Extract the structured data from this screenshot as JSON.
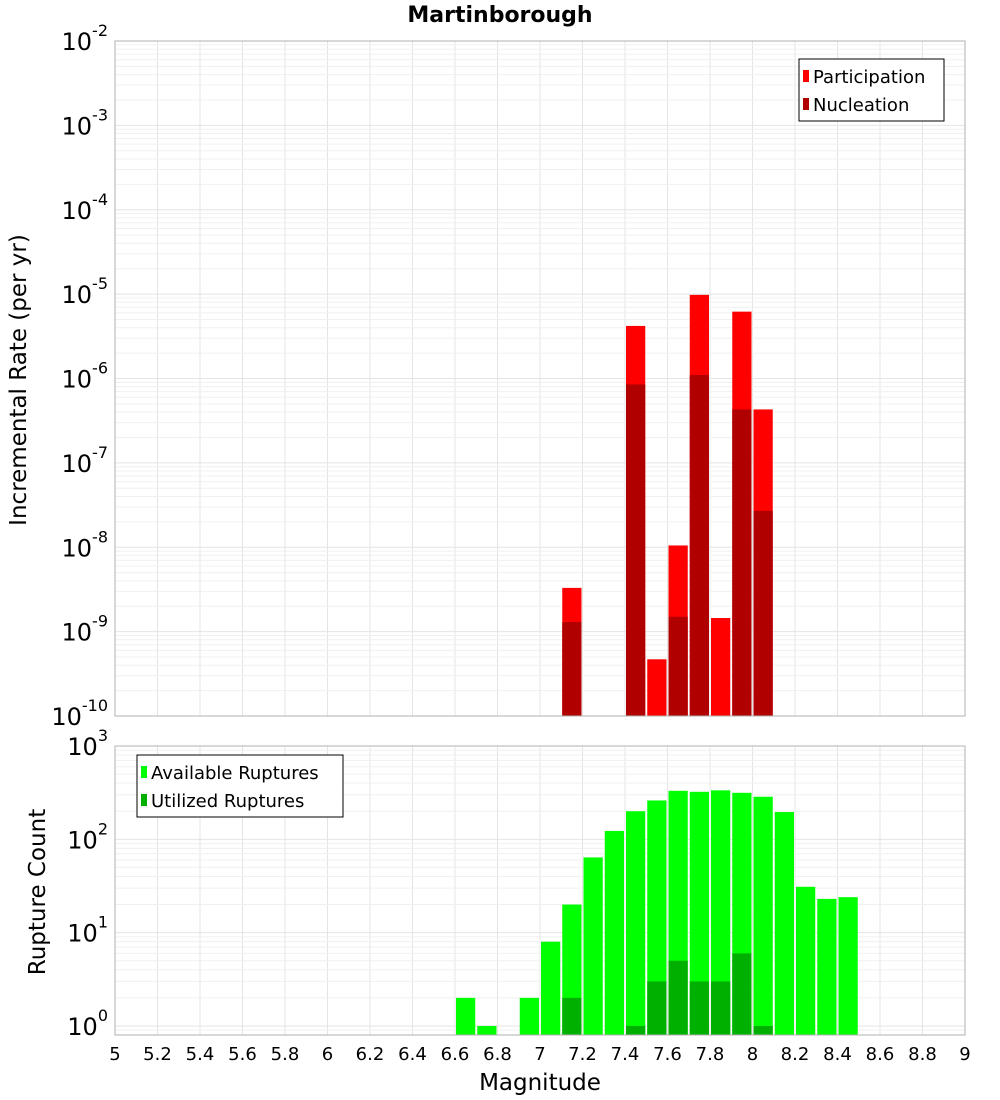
{
  "chart_data": [
    {
      "type": "bar",
      "title": "Martinborough",
      "ylabel": "Incremental Rate (per yr)",
      "xlabel": "",
      "yscale": "log",
      "ylim": [
        1e-10,
        0.01
      ],
      "xlim": [
        5,
        9
      ],
      "bin_width": 0.1,
      "legend": {
        "position": "top-right",
        "entries": [
          "Participation",
          "Nucleation"
        ]
      },
      "colors": {
        "Participation": "#ff0000",
        "Nucleation": "#b00000"
      },
      "series": [
        {
          "name": "Participation",
          "x": [
            7.15,
            7.45,
            7.55,
            7.65,
            7.75,
            7.85,
            7.95,
            8.05
          ],
          "values": [
            3.3e-09,
            4.2e-06,
            4.7e-10,
            1.05e-08,
            9.8e-06,
            1.45e-09,
            6.2e-06,
            4.3e-07
          ]
        },
        {
          "name": "Nucleation",
          "x": [
            7.15,
            7.45,
            7.65,
            7.75,
            7.95,
            8.05
          ],
          "values": [
            1.3e-09,
            8.5e-07,
            1.5e-09,
            1.1e-06,
            4.3e-07,
            2.7e-08
          ]
        }
      ]
    },
    {
      "type": "bar",
      "ylabel": "Rupture Count",
      "xlabel": "Magnitude",
      "yscale": "log",
      "ylim": [
        0.8,
        1000
      ],
      "xlim": [
        5,
        9
      ],
      "bin_width": 0.1,
      "legend": {
        "position": "top-left",
        "entries": [
          "Available Ruptures",
          "Utilized Ruptures"
        ]
      },
      "colors": {
        "Available Ruptures": "#00ff00",
        "Utilized Ruptures": "#00b000"
      },
      "series": [
        {
          "name": "Available Ruptures",
          "x": [
            6.65,
            6.75,
            6.95,
            7.05,
            7.15,
            7.25,
            7.35,
            7.45,
            7.55,
            7.65,
            7.75,
            7.85,
            7.95,
            8.05,
            8.15,
            8.25,
            8.35,
            8.45
          ],
          "values": [
            2,
            1,
            2,
            8,
            20,
            64,
            123,
            200,
            261,
            331,
            323,
            335,
            315,
            286,
            196,
            31,
            23,
            24
          ]
        },
        {
          "name": "Utilized Ruptures",
          "x": [
            7.15,
            7.45,
            7.55,
            7.65,
            7.75,
            7.85,
            7.95,
            8.05
          ],
          "values": [
            2,
            1,
            3,
            5,
            3,
            3,
            6,
            1
          ]
        }
      ]
    }
  ],
  "axes": {
    "top_y_ticks": [
      {
        "base": "10",
        "exp": "-2"
      },
      {
        "base": "10",
        "exp": "-3"
      },
      {
        "base": "10",
        "exp": "-4"
      },
      {
        "base": "10",
        "exp": "-5"
      },
      {
        "base": "10",
        "exp": "-6"
      },
      {
        "base": "10",
        "exp": "-7"
      },
      {
        "base": "10",
        "exp": "-8"
      },
      {
        "base": "10",
        "exp": "-9"
      },
      {
        "base": "10",
        "exp": "-10"
      }
    ],
    "bottom_y_ticks": [
      {
        "base": "10",
        "exp": "3"
      },
      {
        "base": "10",
        "exp": "2"
      },
      {
        "base": "10",
        "exp": "1"
      },
      {
        "base": "10",
        "exp": "0"
      }
    ],
    "x_ticks": [
      "5",
      "5.2",
      "5.4",
      "5.6",
      "5.8",
      "6",
      "6.2",
      "6.4",
      "6.6",
      "6.8",
      "7",
      "7.2",
      "7.4",
      "7.6",
      "7.8",
      "8",
      "8.2",
      "8.4",
      "8.6",
      "8.8",
      "9"
    ]
  }
}
